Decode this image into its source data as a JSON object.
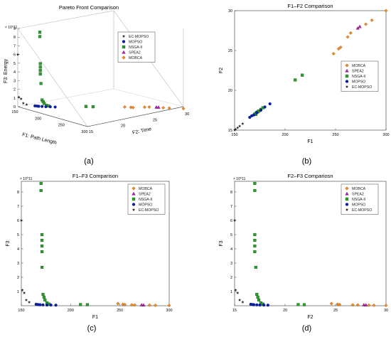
{
  "colors": {
    "MOBCA": "#f28c28",
    "SPEA2": "#b21fb2",
    "NSGA-II": "#2ca02c",
    "MOPSO": "#0a1f9c",
    "EC-MOPSO": "#222222"
  },
  "legend_order": [
    "EC-MOPSO",
    "MOPSO",
    "NSGA-II",
    "SPEA2",
    "MOBCA"
  ],
  "panels": [
    {
      "caption": "(a)",
      "title": "Pareto Front Comparison",
      "type": "scatter3d",
      "axes": {
        "x_label": "F1: Path Length",
        "y_label": "F2: Time",
        "z_label": "F3: Energy",
        "x_ticks": [
          "150",
          "200",
          "250",
          "300"
        ],
        "y_ticks": [
          "15",
          "20",
          "25",
          "30"
        ],
        "z_ticks": [
          "0",
          "1",
          "2",
          "3",
          "4",
          "5",
          "6",
          "7",
          "8",
          "9"
        ],
        "z_exponent": "× 10^11"
      },
      "legend_order": [
        "EC-MOPSO",
        "MOPSO",
        "NSGA-II",
        "SPEA2",
        "MOBCA"
      ]
    },
    {
      "caption": "(b)",
      "title": "F1–F2 Comparison",
      "type": "scatter",
      "axes": {
        "x_label": "F1",
        "y_label": "F2",
        "x_ticks": [
          "150",
          "200",
          "250",
          "300"
        ],
        "y_ticks": [
          "15",
          "20",
          "25",
          "30"
        ]
      },
      "legend_order": [
        "MOBCA",
        "SPEA2",
        "NSGA-II",
        "MOPSO",
        "EC-MOPSO"
      ]
    },
    {
      "caption": "(c)",
      "title": "F1–F3 Comparison",
      "type": "scatter",
      "axes": {
        "x_label": "F1",
        "y_label": "F3",
        "x_ticks": [
          "150",
          "200",
          "250",
          "300"
        ],
        "y_ticks": [
          "1",
          "2",
          "3",
          "4",
          "5",
          "6",
          "7",
          "8"
        ],
        "y_exponent": "× 10^11"
      },
      "legend_order": [
        "MOBCA",
        "SPEA2",
        "NSGA-II",
        "MOPSO",
        "EC-MOPSO"
      ]
    },
    {
      "caption": "(d)",
      "title": "F2–F3 Compariosn",
      "type": "scatter",
      "axes": {
        "x_label": "F2",
        "y_label": "F3",
        "x_ticks": [
          "15",
          "20",
          "25",
          "30"
        ],
        "y_ticks": [
          "1",
          "2",
          "3",
          "4",
          "5",
          "6",
          "7",
          "8"
        ],
        "y_exponent": "× 10^11"
      },
      "legend_order": [
        "MOBCA",
        "SPEA2",
        "NSGA-II",
        "MOPSO",
        "EC-MOPSO"
      ]
    }
  ],
  "chart_data": {
    "type": "scatter",
    "series": [
      {
        "name": "MOBCA",
        "points": [
          [
            248,
            24.6,
            0.15
          ],
          [
            253,
            25.2,
            0.1
          ],
          [
            255,
            25.4,
            0.08
          ],
          [
            262,
            26.7,
            0.06
          ],
          [
            265,
            27.2,
            0.05
          ],
          [
            280,
            28.3,
            0.04
          ],
          [
            286,
            28.8,
            0.03
          ],
          [
            300,
            30.0,
            0.02
          ]
        ]
      },
      {
        "name": "SPEA2",
        "points": [
          [
            272,
            27.8,
            0.06
          ],
          [
            274,
            28.0,
            0.05
          ]
        ]
      },
      {
        "name": "NSGA-II",
        "points": [
          [
            170,
            17.0,
            8.6
          ],
          [
            170,
            17.0,
            8.1
          ],
          [
            171,
            17.0,
            5.0
          ],
          [
            171,
            17.0,
            4.6
          ],
          [
            171,
            17.0,
            4.2
          ],
          [
            171,
            17.0,
            3.8
          ],
          [
            171,
            17.1,
            2.7
          ],
          [
            172,
            17.2,
            0.8
          ],
          [
            173,
            17.3,
            0.6
          ],
          [
            174,
            17.4,
            0.4
          ],
          [
            176,
            17.6,
            0.2
          ],
          [
            178,
            17.8,
            0.12
          ],
          [
            210,
            21.3,
            0.08
          ],
          [
            217,
            21.9,
            0.07
          ]
        ]
      },
      {
        "name": "MOPSO",
        "points": [
          [
            165,
            16.6,
            0.1
          ],
          [
            167,
            16.8,
            0.08
          ],
          [
            169,
            16.9,
            0.07
          ],
          [
            172,
            17.2,
            0.06
          ],
          [
            176,
            17.5,
            0.05
          ],
          [
            180,
            17.9,
            0.05
          ],
          [
            185,
            18.3,
            0.04
          ]
        ]
      },
      {
        "name": "EC-MOPSO",
        "points": [
          [
            150,
            15.0,
            6.0
          ],
          [
            151,
            15.1,
            1.1
          ],
          [
            153,
            15.3,
            0.9
          ],
          [
            155,
            15.5,
            0.4
          ],
          [
            158,
            15.8,
            0.25
          ]
        ]
      }
    ]
  }
}
